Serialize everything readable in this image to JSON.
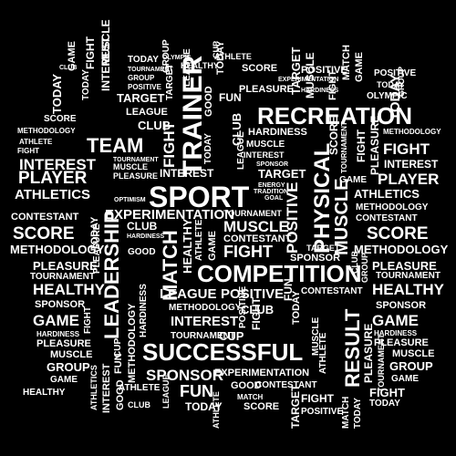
{
  "colors": {
    "background": "#000000",
    "text": "#ffffff"
  },
  "words": {
    "sport": "SPORT",
    "competition": "COMPETITION",
    "recreation": "RECREATION",
    "successful": "SUCCESSFUL",
    "trainer": "TRAINER",
    "team": "TEAM",
    "physical": "PHYSICAL",
    "leadership": "LEADERSHIP",
    "result": "RESULT",
    "muscle": "MUSCLE",
    "fight": "FIGHT",
    "score": "SCORE",
    "player": "PLAYER",
    "interest": "INTEREST",
    "athletics": "ATHLETICS",
    "healthy": "HEALTHY",
    "game": "GAME",
    "experimentation": "EXPERIMENTATION",
    "positive": "POSITIVE",
    "sponsor": "SPONSOR",
    "pleasure": "PLEASURE",
    "methodology": "METHODOLOGY",
    "match": "MATCH",
    "contestant": "CONTESTANT",
    "tournament": "TOURNAMENT",
    "league": "LEAGUE",
    "target": "TARGET",
    "club": "CLUB",
    "today": "TODAY",
    "fun": "FUN",
    "cup": "CUP",
    "good": "GOOD",
    "group": "GROUP",
    "athlete": "ATHLETE",
    "hardiness": "HARDINESS",
    "olympic": "OLYMPIC",
    "optimism": "OPTIMISM",
    "energy": "ENERGY",
    "tradition": "TRADITION",
    "goal": "GOAL"
  }
}
